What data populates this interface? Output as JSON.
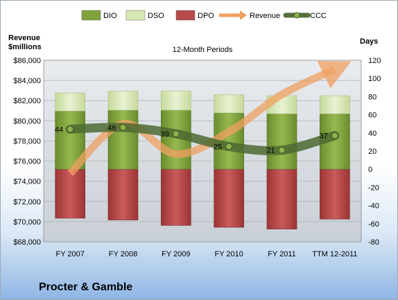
{
  "chart_data": {
    "type": "bar",
    "title": "12-Month Periods",
    "company": "Procter & Gamble",
    "left_axis_label": [
      "Revenue",
      "$millions"
    ],
    "right_axis_label": "Days",
    "categories": [
      "FY 2007",
      "FY 2008",
      "FY 2009",
      "FY 2010",
      "FY 2011",
      "TTM 12-2011"
    ],
    "left_axis": {
      "min": 68000,
      "max": 86000,
      "step": 2000,
      "prefix": "$"
    },
    "right_axis": {
      "min": -80,
      "max": 120,
      "step": 20
    },
    "legend": [
      {
        "name": "DIO",
        "color": "#7fa23a"
      },
      {
        "name": "DSO",
        "color": "#d8e8b4"
      },
      {
        "name": "DPO",
        "color": "#b84a4a"
      },
      {
        "name": "Revenue",
        "color": "#f0a060"
      },
      {
        "name": "CCC",
        "color": "#55703a"
      }
    ],
    "series": [
      {
        "name": "DIO",
        "values": [
          64,
          65,
          65,
          62,
          61,
          61
        ]
      },
      {
        "name": "DSO",
        "values": [
          20,
          21,
          21,
          20,
          20,
          20
        ]
      },
      {
        "name": "DPO",
        "values": [
          -54,
          -56,
          -62,
          -64,
          -66,
          -55
        ]
      },
      {
        "name": "CCC",
        "values": [
          44,
          46,
          39,
          25,
          21,
          37
        ]
      },
      {
        "name": "Revenue",
        "values": [
          74800,
          79700,
          76700,
          78900,
          82600,
          85100
        ]
      }
    ],
    "grid": true,
    "legend_position": "top"
  }
}
